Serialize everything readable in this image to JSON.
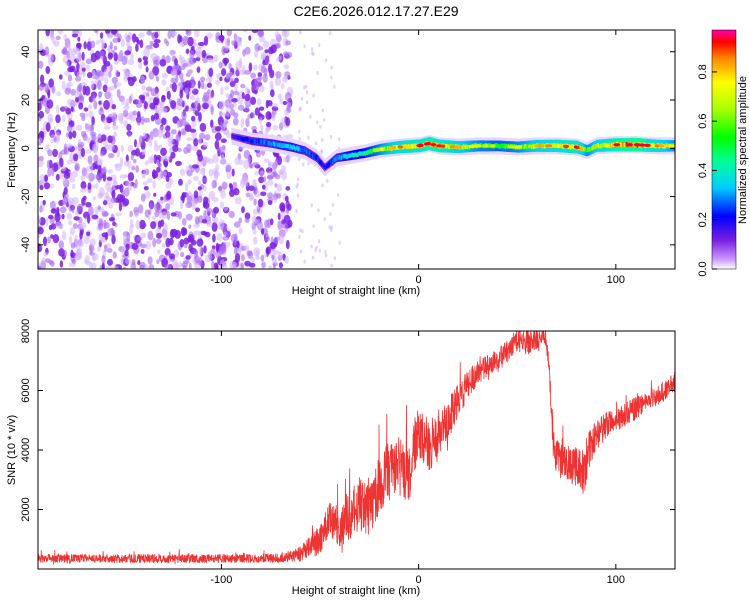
{
  "title": "C2E6.2026.012.17.27.E29",
  "chart_data": [
    {
      "type": "heatmap",
      "xlabel": "Height of straight line (km)",
      "ylabel": "Frequency (Hz)",
      "xlim": [
        -193,
        130
      ],
      "ylim": [
        -50,
        49
      ],
      "xticks": [
        -100,
        0,
        100
      ],
      "yticks": [
        -40,
        -20,
        0,
        20,
        40
      ],
      "xtick_labels": [
        "-100",
        "0",
        "100"
      ],
      "ytick_labels": [
        "-40",
        "-20",
        "0",
        "20",
        "40"
      ],
      "colorbar": {
        "label": "Normalized spectral amplitude",
        "range": [
          0,
          0.97
        ],
        "ticks": [
          0,
          0.2,
          0.4,
          0.6,
          0.8
        ],
        "tick_labels": [
          "0.0",
          "0.2",
          "0.4",
          "0.6",
          "0.8"
        ]
      },
      "noise_region_x": [
        -193,
        -65
      ],
      "signal_track": {
        "x": [
          -95,
          -85,
          -75,
          -65,
          -58,
          -52,
          -48,
          -42,
          -35,
          -28,
          -20,
          -10,
          0,
          5,
          10,
          20,
          30,
          40,
          50,
          60,
          70,
          80,
          85,
          90,
          100,
          110,
          120,
          130
        ],
        "y": [
          5,
          3,
          2,
          0.5,
          -1,
          -4,
          -8,
          -4,
          -3,
          -2,
          -0.5,
          0.5,
          1,
          2,
          1,
          0.5,
          1,
          1,
          0.5,
          1,
          1,
          0.5,
          -1,
          1,
          1.5,
          1.5,
          1,
          1
        ],
        "amplitude": [
          0.15,
          0.25,
          0.3,
          0.35,
          0.3,
          0.25,
          0.2,
          0.3,
          0.4,
          0.45,
          0.6,
          0.75,
          0.8,
          0.85,
          0.8,
          0.7,
          0.6,
          0.55,
          0.6,
          0.7,
          0.75,
          0.8,
          0.6,
          0.7,
          0.85,
          0.9,
          0.75,
          0.6
        ]
      }
    },
    {
      "type": "line",
      "xlabel": "Height of straight line (km)",
      "ylabel": "SNR (10 * v/v)",
      "xlim": [
        -193,
        130
      ],
      "ylim": [
        0,
        8000
      ],
      "xticks": [
        -100,
        0,
        100
      ],
      "yticks": [
        2000,
        4000,
        6000,
        8000
      ],
      "xtick_labels": [
        "-100",
        "0",
        "100"
      ],
      "ytick_labels": [
        "2000",
        "4000",
        "6000",
        "8000"
      ],
      "color": "#ee3333",
      "series": [
        {
          "x": [
            -193,
            -150,
            -100,
            -70,
            -60,
            -50,
            -45,
            -40,
            -35,
            -30,
            -25,
            -20,
            -15,
            -10,
            -5,
            0,
            5,
            10,
            15,
            20,
            25,
            30,
            35,
            40,
            45,
            50,
            55,
            60,
            64,
            66,
            68,
            70,
            75,
            80,
            84,
            86,
            90,
            95,
            100,
            105,
            110,
            115,
            120,
            125,
            130
          ],
          "values": [
            350,
            350,
            350,
            360,
            500,
            1000,
            1700,
            1300,
            1800,
            2200,
            2000,
            2800,
            3300,
            3500,
            3200,
            4600,
            4200,
            4500,
            5000,
            5700,
            6200,
            6600,
            6800,
            7000,
            7300,
            7700,
            7600,
            7700,
            7900,
            7000,
            4400,
            3800,
            3600,
            3400,
            3200,
            4000,
            4500,
            4800,
            5000,
            5200,
            5400,
            5600,
            5800,
            6000,
            6300
          ],
          "noise": [
            150,
            150,
            150,
            150,
            250,
            500,
            600,
            600,
            800,
            900,
            900,
            1000,
            1000,
            1000,
            1000,
            900,
            900,
            900,
            700,
            600,
            500,
            400,
            400,
            400,
            400,
            400,
            400,
            400,
            300,
            300,
            600,
            600,
            600,
            700,
            800,
            700,
            500,
            500,
            400,
            400,
            400,
            350,
            350,
            350,
            350
          ]
        }
      ]
    }
  ]
}
